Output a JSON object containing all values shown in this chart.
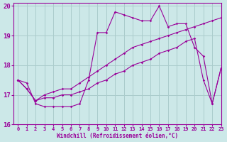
{
  "xlabel": "Windchill (Refroidissement éolien,°C)",
  "xlim": [
    -0.5,
    23
  ],
  "ylim": [
    16,
    20.1
  ],
  "yticks": [
    16,
    17,
    18,
    19,
    20
  ],
  "xticks": [
    0,
    1,
    2,
    3,
    4,
    5,
    6,
    7,
    8,
    9,
    10,
    11,
    12,
    13,
    14,
    15,
    16,
    17,
    18,
    19,
    20,
    21,
    22,
    23
  ],
  "bg_color": "#cce8e8",
  "grid_color": "#aacccc",
  "line_color": "#990099",
  "series": [
    [
      17.5,
      17.4,
      16.7,
      16.6,
      16.6,
      16.6,
      16.6,
      16.7,
      17.5,
      19.1,
      19.1,
      19.8,
      19.7,
      19.6,
      19.5,
      19.5,
      20.0,
      19.3,
      19.4,
      19.4,
      18.6,
      18.3,
      16.7,
      17.9
    ],
    [
      17.5,
      17.2,
      16.8,
      17.0,
      17.1,
      17.2,
      17.2,
      17.4,
      17.6,
      17.8,
      18.0,
      18.2,
      18.4,
      18.6,
      18.7,
      18.8,
      18.9,
      19.0,
      19.1,
      19.2,
      19.3,
      19.4,
      19.5,
      19.6
    ],
    [
      17.5,
      17.2,
      16.8,
      16.9,
      16.9,
      17.0,
      17.0,
      17.1,
      17.2,
      17.4,
      17.5,
      17.7,
      17.8,
      18.0,
      18.1,
      18.2,
      18.4,
      18.5,
      18.6,
      18.8,
      18.9,
      17.5,
      16.7,
      17.9
    ]
  ]
}
